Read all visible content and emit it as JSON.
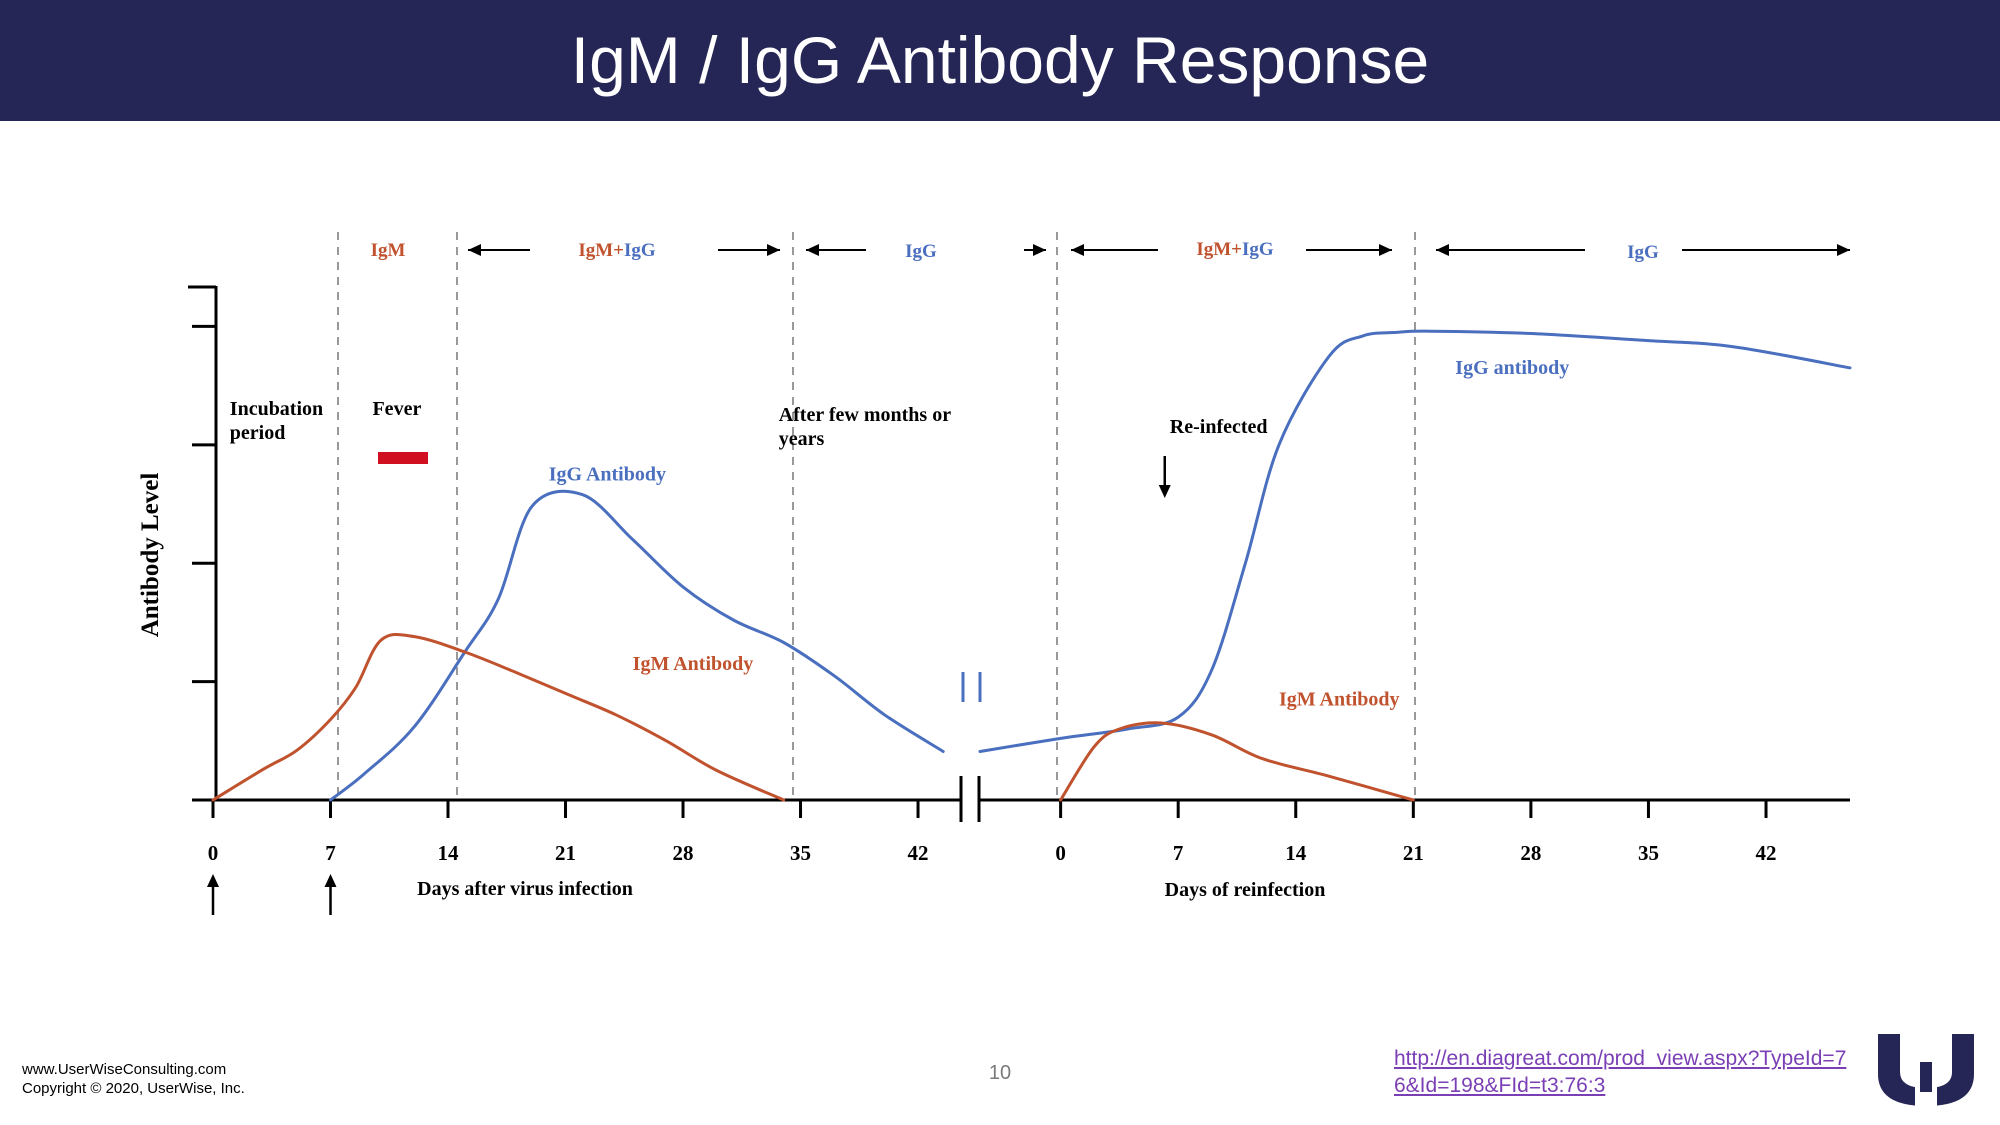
{
  "slide": {
    "title": "IgM / IgG Antibody Response",
    "footer_line1": "www.UserWiseConsulting.com",
    "footer_line2": "Copyright ©  2020, UserWise, Inc.",
    "page_number": "10",
    "source_link": "http://en.diagreat.com/prod_view.aspx?TypeId=76&Id=198&FId=t3:76:3",
    "colors": {
      "header": "#252655",
      "igm": "#c0522e",
      "igg": "#4a6fbf",
      "link": "#7b3fb5",
      "fever": "#d01020",
      "logo": "#252655"
    },
    "logo_icon": "userwise-logo-icon"
  },
  "chart_data": {
    "type": "line",
    "ylabel": "Antibody Level",
    "panels": [
      {
        "xlabel": "Days after virus infection",
        "ticks": [
          0,
          7,
          14,
          21,
          28,
          35,
          42
        ],
        "xlim": [
          0,
          44.5
        ],
        "series": [
          {
            "name": "IgG Antibody",
            "x": [
              7,
              9,
              12,
              15,
              17,
              19,
              22,
              25,
              28,
              31,
              34,
              37,
              40,
              43.5
            ],
            "y": [
              0,
              0.22,
              0.62,
              1.25,
              1.7,
              2.48,
              2.58,
              2.2,
              1.8,
              1.52,
              1.33,
              1.05,
              0.72,
              0.41
            ]
          },
          {
            "name": "IgM Antibody",
            "x": [
              0,
              3,
              5,
              7,
              8.5,
              10,
              12,
              15,
              18,
              21,
              24,
              27,
              30,
              34
            ],
            "y": [
              0,
              0.26,
              0.42,
              0.68,
              0.95,
              1.35,
              1.38,
              1.25,
              1.08,
              0.9,
              0.72,
              0.5,
              0.25,
              0
            ]
          }
        ],
        "annotations": [
          {
            "text": "Incubation",
            "text2": "period",
            "x": 1.0,
            "y": 3.25
          },
          {
            "text": "Fever",
            "x": 9.5,
            "y": 3.25
          },
          {
            "text": "IgG Antibody",
            "x": 20.0,
            "y": 2.7
          },
          {
            "text": "IgM Antibody",
            "x": 25.0,
            "y": 1.1
          },
          {
            "text": "After few months or",
            "text2": "years",
            "x": 33.7,
            "y": 3.2
          }
        ],
        "regions": [
          {
            "label": "IgM",
            "from": 7,
            "to": 14
          },
          {
            "label": "IgM+IgG",
            "from": 14,
            "to": 34
          },
          {
            "label": "IgG",
            "from": 34,
            "to": 44.5
          }
        ]
      },
      {
        "xlabel": "Days of reinfection",
        "ticks": [
          0,
          7,
          14,
          21,
          28,
          35,
          42
        ],
        "xlim": [
          -4.8,
          47
        ],
        "series": [
          {
            "name": "IgG antibody",
            "x": [
              -4.8,
              0,
              4,
              7,
              9,
              11,
              13,
              16,
              18,
              20,
              22,
              28,
              35,
              40,
              47
            ],
            "y": [
              0.41,
              0.52,
              0.6,
              0.7,
              1.1,
              2.0,
              3.0,
              3.75,
              3.92,
              3.95,
              3.96,
              3.94,
              3.88,
              3.83,
              3.65
            ]
          },
          {
            "name": "IgM Antibody",
            "x": [
              0,
              2,
              3.5,
              6,
              9,
              12,
              16,
              21
            ],
            "y": [
              0,
              0.45,
              0.6,
              0.65,
              0.55,
              0.35,
              0.2,
              0
            ]
          }
        ],
        "annotations": [
          {
            "text": "Re-infected",
            "x": 6.5,
            "y": 3.1
          },
          {
            "text": "IgG antibody",
            "x": 23.5,
            "y": 3.6
          },
          {
            "text": "IgM Antibody",
            "x": 13.0,
            "y": 0.8
          }
        ],
        "regions": [
          {
            "label": "IgM+IgG",
            "from": 0,
            "to": 21
          },
          {
            "label": "IgG",
            "from": 21,
            "to": 47
          }
        ]
      }
    ],
    "ylim": [
      0,
      4.35
    ],
    "yticks": [
      1,
      2,
      3,
      4
    ],
    "markers": [
      {
        "type": "up-arrow",
        "panel": 0,
        "x": 0
      },
      {
        "type": "up-arrow",
        "panel": 0,
        "x": 7
      },
      {
        "type": "down-arrow",
        "panel": 1,
        "x": 6.2
      }
    ]
  }
}
